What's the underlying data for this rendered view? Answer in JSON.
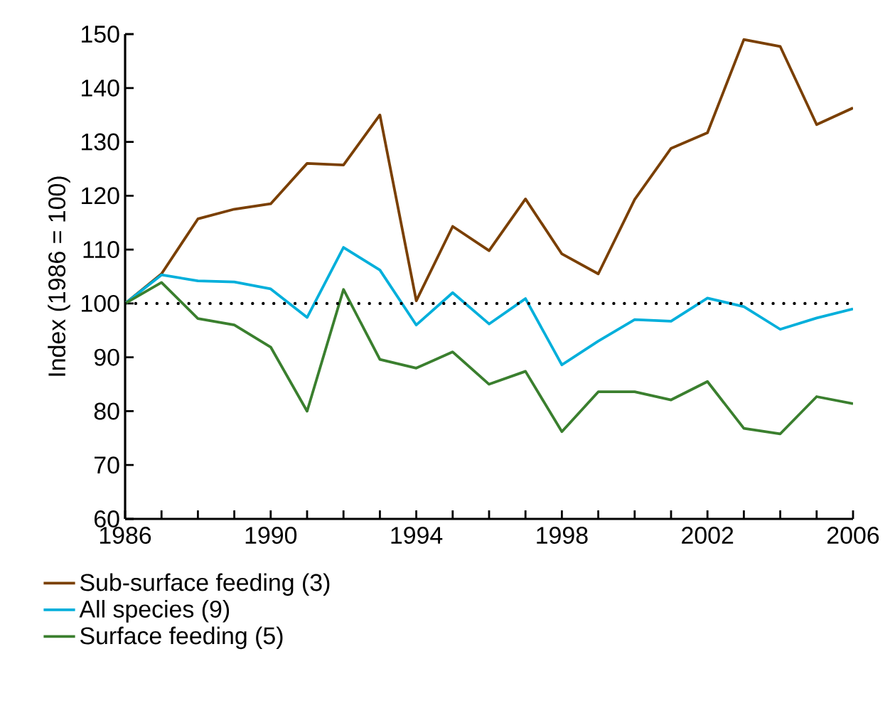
{
  "chart_data": {
    "type": "line",
    "ylabel": "Index (1986 = 100)",
    "x": [
      1986,
      1987,
      1988,
      1989,
      1990,
      1991,
      1992,
      1993,
      1994,
      1995,
      1996,
      1997,
      1998,
      1999,
      2000,
      2001,
      2002,
      2003,
      2004,
      2005,
      2006
    ],
    "series": [
      {
        "name": "Sub-surface feeding (3)",
        "color": "#7a3f00",
        "values": [
          100,
          105.5,
          115.7,
          117.5,
          118.5,
          126,
          125.7,
          135,
          100.5,
          114.3,
          109.8,
          119.4,
          109.2,
          105.5,
          119.3,
          128.8,
          131.7,
          149,
          147.7,
          133.2,
          136.3
        ]
      },
      {
        "name": "All species (9)",
        "color": "#00afdb",
        "values": [
          100,
          105.3,
          104.2,
          104,
          102.7,
          97.4,
          110.4,
          106.2,
          96,
          102,
          96.2,
          100.9,
          88.6,
          93,
          97,
          96.7,
          101,
          99.4,
          95.2,
          97.3,
          99
        ]
      },
      {
        "name": "Surface feeding (5)",
        "color": "#3a7f2e",
        "values": [
          100,
          103.9,
          97.2,
          96,
          91.9,
          80,
          102.6,
          89.6,
          88,
          91,
          85,
          87.4,
          76.2,
          83.6,
          83.6,
          82.1,
          85.5,
          76.8,
          75.8,
          82.7,
          81.4
        ]
      }
    ],
    "xlim": [
      1986,
      2006
    ],
    "xticks": [
      1986,
      {
        "value": 1987,
        "label": null
      },
      {
        "value": 1988,
        "label": null
      },
      {
        "value": 1989,
        "label": null
      },
      1990,
      {
        "value": 1991,
        "label": null
      },
      {
        "value": 1992,
        "label": null
      },
      {
        "value": 1993,
        "label": null
      },
      1994,
      {
        "value": 1995,
        "label": null
      },
      {
        "value": 1996,
        "label": null
      },
      {
        "value": 1997,
        "label": null
      },
      1998,
      {
        "value": 1999,
        "label": null
      },
      {
        "value": 2000,
        "label": null
      },
      {
        "value": 2001,
        "label": null
      },
      2002,
      {
        "value": 2003,
        "label": null
      },
      {
        "value": 2004,
        "label": null
      },
      {
        "value": 2005,
        "label": null
      },
      2006
    ],
    "ylim": [
      60,
      150
    ],
    "yticks": [
      60,
      70,
      80,
      90,
      100,
      110,
      120,
      130,
      140,
      150
    ],
    "ref_lines": [
      {
        "axis": "y",
        "value": 100,
        "color": "#000000",
        "line_style": "dotted"
      }
    ],
    "grid": false,
    "legend": "bottom",
    "marker": "none",
    "line_style": "solid"
  }
}
